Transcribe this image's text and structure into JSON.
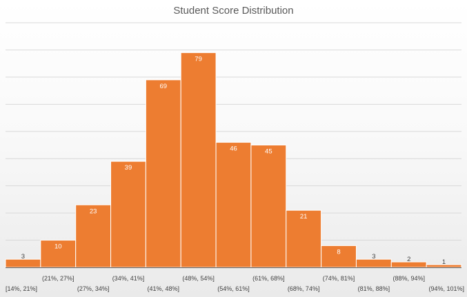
{
  "chart_data": {
    "type": "bar",
    "title": "Student Score Distribution",
    "categories": [
      "[14%, 21%]",
      "(21%, 27%]",
      "(27%, 34%]",
      "(34%, 41%]",
      "(41%, 48%]",
      "(48%, 54%]",
      "(54%, 61%]",
      "(61%, 68%]",
      "(68%, 74%]",
      "(74%, 81%]",
      "(81%, 88%]",
      "(88%, 94%]",
      "(94%, 101%]"
    ],
    "values": [
      3,
      10,
      23,
      39,
      69,
      79,
      46,
      45,
      21,
      8,
      3,
      2,
      1
    ],
    "ylim": [
      0,
      90
    ],
    "grid": true,
    "colors": {
      "bar": "#ed7d31",
      "bar_edge": "#ffffff",
      "grid": "#d9d9d9",
      "axis": "#595959"
    }
  }
}
